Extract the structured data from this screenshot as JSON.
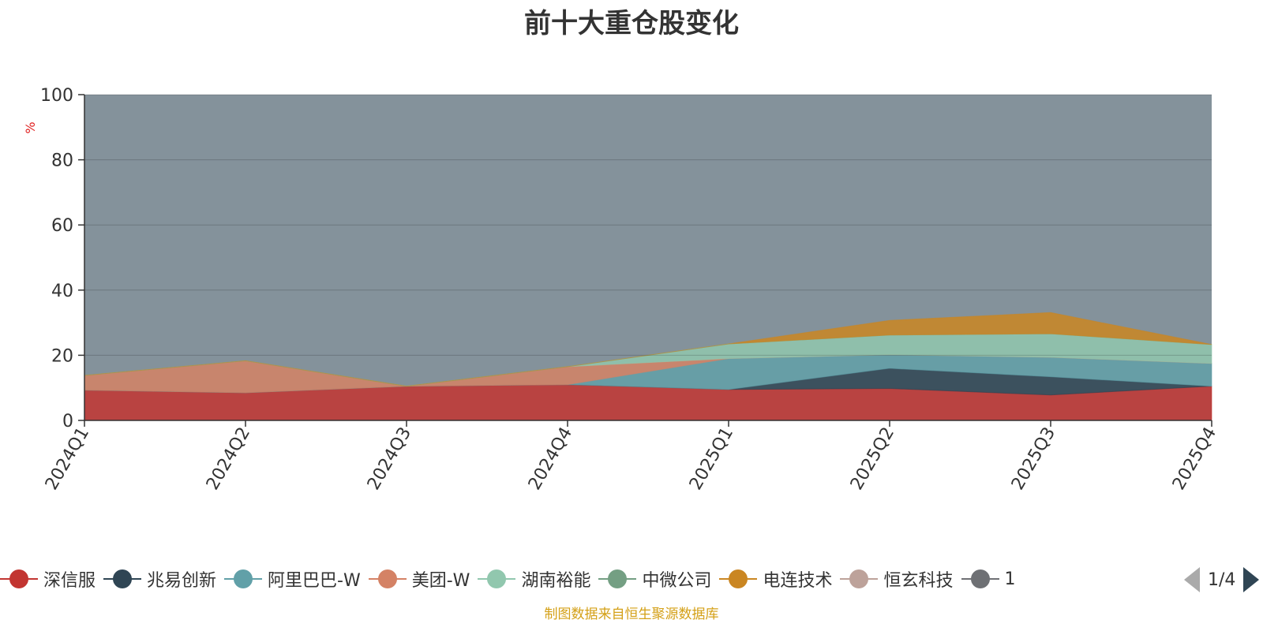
{
  "chart_data": {
    "type": "area",
    "title": "前十大重仓股变化",
    "ylabel": "%",
    "ylim": [
      0,
      100
    ],
    "y_ticks": [
      0,
      20,
      40,
      60,
      80,
      100
    ],
    "stacked": true,
    "categories": [
      "2024Q1",
      "2024Q2",
      "2024Q3",
      "2024Q4",
      "2025Q1",
      "2025Q2",
      "2025Q3",
      "2025Q4"
    ],
    "series": [
      {
        "name": "深信服",
        "color": "#c23531",
        "values": [
          9.3,
          8.5,
          10.5,
          11.0,
          9.5,
          9.8,
          7.8,
          10.5
        ]
      },
      {
        "name": "兆易创新",
        "color": "#2f4554",
        "values": [
          0.0,
          0.0,
          0.0,
          0.0,
          0.0,
          6.2,
          5.6,
          0.0
        ]
      },
      {
        "name": "阿里巴巴-W",
        "color": "#61a0a8",
        "values": [
          0.0,
          0.0,
          0.0,
          0.0,
          9.5,
          4.2,
          6.0,
          7.0
        ]
      },
      {
        "name": "美团-W",
        "color": "#d48265",
        "values": [
          4.5,
          9.8,
          0.0,
          5.5,
          0.0,
          0.0,
          0.0,
          0.0
        ]
      },
      {
        "name": "湖南裕能",
        "color": "#91c7ae",
        "values": [
          0.0,
          0.0,
          0.0,
          0.0,
          4.5,
          6.0,
          7.2,
          5.8
        ]
      },
      {
        "name": "中微公司",
        "color": "#749f83",
        "values": [
          0.0,
          0.0,
          0.0,
          0.0,
          0.0,
          0.0,
          0.0,
          0.0
        ]
      },
      {
        "name": "电连技术",
        "color": "#ca8622",
        "values": [
          0.0,
          0.0,
          0.0,
          0.0,
          0.0,
          4.5,
          6.5,
          0.0
        ]
      }
    ],
    "legend_position": "bottom",
    "grid": true
  },
  "legend": {
    "items": [
      {
        "label": "深信服",
        "color": "#c23531"
      },
      {
        "label": "兆易创新",
        "color": "#2f4554"
      },
      {
        "label": "阿里巴巴-W",
        "color": "#61a0a8"
      },
      {
        "label": "美团-W",
        "color": "#d48265"
      },
      {
        "label": "湖南裕能",
        "color": "#91c7ae"
      },
      {
        "label": "中微公司",
        "color": "#749f83"
      },
      {
        "label": "电连技术",
        "color": "#ca8622"
      },
      {
        "label": "恒玄科技",
        "color": "#bda29a"
      },
      {
        "label": "1",
        "color": "#6e7074"
      }
    ],
    "page_text": "1/4"
  },
  "footer": "制图数据来自恒生聚源数据库",
  "colors": {
    "top_band": "#84929b",
    "grid_line": "#e0e0e0",
    "axis_line": "#333333",
    "ylabel": "#e02020"
  }
}
